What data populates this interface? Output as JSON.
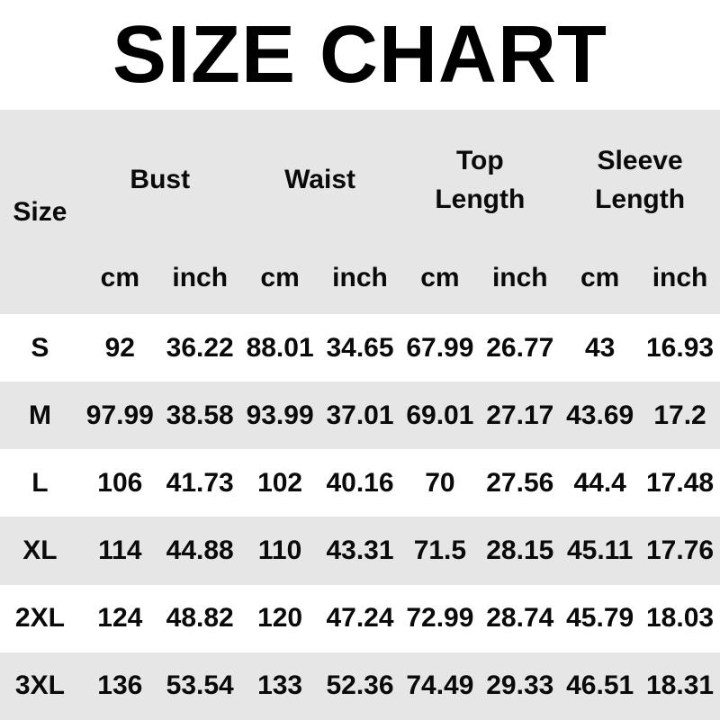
{
  "title": "SIZE CHART",
  "colors": {
    "background": "#ffffff",
    "stripe_gray": "#e6e6e6",
    "text": "#0a0a0a"
  },
  "table": {
    "size_header": "Size",
    "groups": [
      "Bust",
      "Waist",
      "Top Length",
      "Sleeve Length"
    ],
    "units": [
      "cm",
      "inch",
      "cm",
      "inch",
      "cm",
      "inch",
      "cm",
      "inch"
    ],
    "rows": [
      {
        "size": "S",
        "values": [
          "92",
          "36.22",
          "88.01",
          "34.65",
          "67.99",
          "26.77",
          "43",
          "16.93"
        ]
      },
      {
        "size": "M",
        "values": [
          "97.99",
          "38.58",
          "93.99",
          "37.01",
          "69.01",
          "27.17",
          "43.69",
          "17.2"
        ]
      },
      {
        "size": "L",
        "values": [
          "106",
          "41.73",
          "102",
          "40.16",
          "70",
          "27.56",
          "44.4",
          "17.48"
        ]
      },
      {
        "size": "XL",
        "values": [
          "114",
          "44.88",
          "110",
          "43.31",
          "71.5",
          "28.15",
          "45.11",
          "17.76"
        ]
      },
      {
        "size": "2XL",
        "values": [
          "124",
          "48.82",
          "120",
          "47.24",
          "72.99",
          "28.74",
          "45.79",
          "18.03"
        ]
      },
      {
        "size": "3XL",
        "values": [
          "136",
          "53.54",
          "133",
          "52.36",
          "74.49",
          "29.33",
          "46.51",
          "18.31"
        ]
      }
    ]
  },
  "chart_data": {
    "type": "table",
    "title": "SIZE CHART",
    "column_groups": [
      "Bust",
      "Waist",
      "Top Length",
      "Sleeve Length"
    ],
    "columns": [
      "Size",
      "Bust cm",
      "Bust inch",
      "Waist cm",
      "Waist inch",
      "Top Length cm",
      "Top Length inch",
      "Sleeve Length cm",
      "Sleeve Length inch"
    ],
    "rows": [
      [
        "S",
        92,
        36.22,
        88.01,
        34.65,
        67.99,
        26.77,
        43,
        16.93
      ],
      [
        "M",
        97.99,
        38.58,
        93.99,
        37.01,
        69.01,
        27.17,
        43.69,
        17.2
      ],
      [
        "L",
        106,
        41.73,
        102,
        40.16,
        70,
        27.56,
        44.4,
        17.48
      ],
      [
        "XL",
        114,
        44.88,
        110,
        43.31,
        71.5,
        28.15,
        45.11,
        17.76
      ],
      [
        "2XL",
        124,
        48.82,
        120,
        47.24,
        72.99,
        28.74,
        45.79,
        18.03
      ],
      [
        "3XL",
        136,
        53.54,
        133,
        52.36,
        74.49,
        29.33,
        46.51,
        18.31
      ]
    ]
  }
}
